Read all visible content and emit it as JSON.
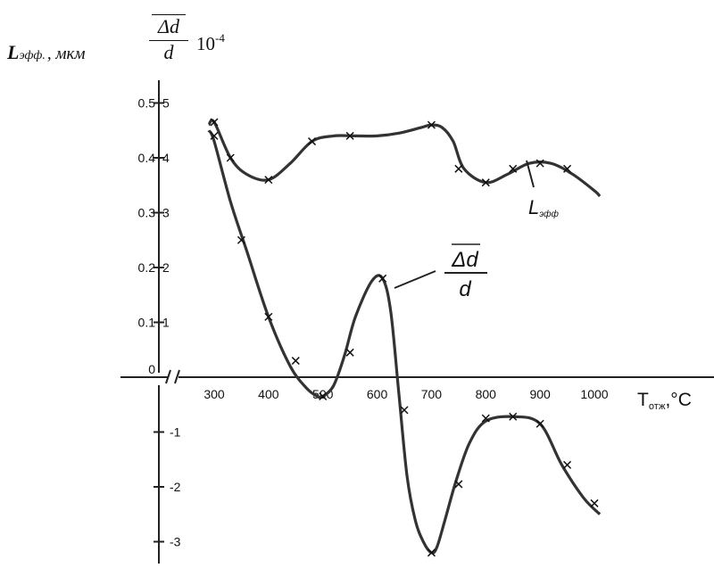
{
  "chart_data": {
    "type": "line",
    "title": "",
    "ylabel_left": {
      "symbol": "L",
      "subscript": "эфф.",
      "unit": ", мкм"
    },
    "ylabel_right": {
      "numerator": "Δd",
      "denominator": "d",
      "scale": "10",
      "scale_exp": "-4"
    },
    "xlabel": {
      "main": "T",
      "subscript": "отж",
      "unit": ",°C"
    },
    "x_ticks": [
      "300",
      "400",
      "500",
      "600",
      "700",
      "800",
      "900",
      "1000"
    ],
    "y_ticks_left": [
      "0.5",
      "0.4",
      "0.3",
      "0.2",
      "0.1",
      "0"
    ],
    "y_ticks_right": [
      "5",
      "4",
      "3",
      "2",
      "1",
      "-1",
      "-2",
      "-3"
    ],
    "xlim": [
      250,
      1050
    ],
    "ylim": [
      -3,
      5
    ],
    "series": [
      {
        "name": "L",
        "name_sub": "эфф",
        "axis": "left",
        "x": [
          290,
          300,
          330,
          360,
          400,
          440,
          480,
          520,
          560,
          600,
          640,
          680,
          700,
          720,
          740,
          760,
          800,
          840,
          880,
          920,
          960,
          1000,
          1010
        ],
        "y": [
          0.46,
          0.465,
          0.4,
          0.37,
          0.36,
          0.39,
          0.43,
          0.44,
          0.44,
          0.44,
          0.445,
          0.455,
          0.46,
          0.455,
          0.43,
          0.38,
          0.355,
          0.37,
          0.39,
          0.39,
          0.37,
          0.34,
          0.33
        ],
        "markers": [
          {
            "x": 300,
            "y": 0.465
          },
          {
            "x": 330,
            "y": 0.4
          },
          {
            "x": 400,
            "y": 0.36
          },
          {
            "x": 480,
            "y": 0.43
          },
          {
            "x": 550,
            "y": 0.44
          },
          {
            "x": 700,
            "y": 0.46
          },
          {
            "x": 750,
            "y": 0.38
          },
          {
            "x": 800,
            "y": 0.355
          },
          {
            "x": 850,
            "y": 0.38
          },
          {
            "x": 900,
            "y": 0.39
          },
          {
            "x": 950,
            "y": 0.38
          }
        ]
      },
      {
        "name": "Δd/d",
        "axis": "right",
        "x": [
          290,
          300,
          330,
          360,
          400,
          440,
          470,
          490,
          500,
          520,
          540,
          560,
          590,
          610,
          625,
          640,
          655,
          670,
          685,
          700,
          710,
          725,
          745,
          770,
          800,
          850,
          900,
          940,
          980,
          1010
        ],
        "y": [
          4.5,
          4.3,
          3.2,
          2.3,
          1.1,
          0.2,
          -0.2,
          -0.35,
          -0.35,
          -0.15,
          0.4,
          1.1,
          1.75,
          1.8,
          1.2,
          -0.3,
          -1.8,
          -2.6,
          -3.0,
          -3.2,
          -3.1,
          -2.6,
          -1.9,
          -1.2,
          -0.8,
          -0.72,
          -0.85,
          -1.6,
          -2.2,
          -2.5
        ],
        "markers": [
          {
            "x": 300,
            "y": 4.4
          },
          {
            "x": 350,
            "y": 2.5
          },
          {
            "x": 400,
            "y": 1.1
          },
          {
            "x": 450,
            "y": 0.3
          },
          {
            "x": 500,
            "y": -0.35
          },
          {
            "x": 550,
            "y": 0.45
          },
          {
            "x": 610,
            "y": 1.8
          },
          {
            "x": 650,
            "y": -0.6
          },
          {
            "x": 700,
            "y": -3.2
          },
          {
            "x": 750,
            "y": -1.95
          },
          {
            "x": 800,
            "y": -0.75
          },
          {
            "x": 850,
            "y": -0.72
          },
          {
            "x": 900,
            "y": -0.85
          },
          {
            "x": 950,
            "y": -1.6
          },
          {
            "x": 1000,
            "y": -2.3
          }
        ]
      }
    ],
    "annotations": [
      {
        "series": 0,
        "text": "L",
        "sub": "эфф"
      },
      {
        "series": 1,
        "numerator": "Δd",
        "denominator": "d"
      }
    ]
  }
}
